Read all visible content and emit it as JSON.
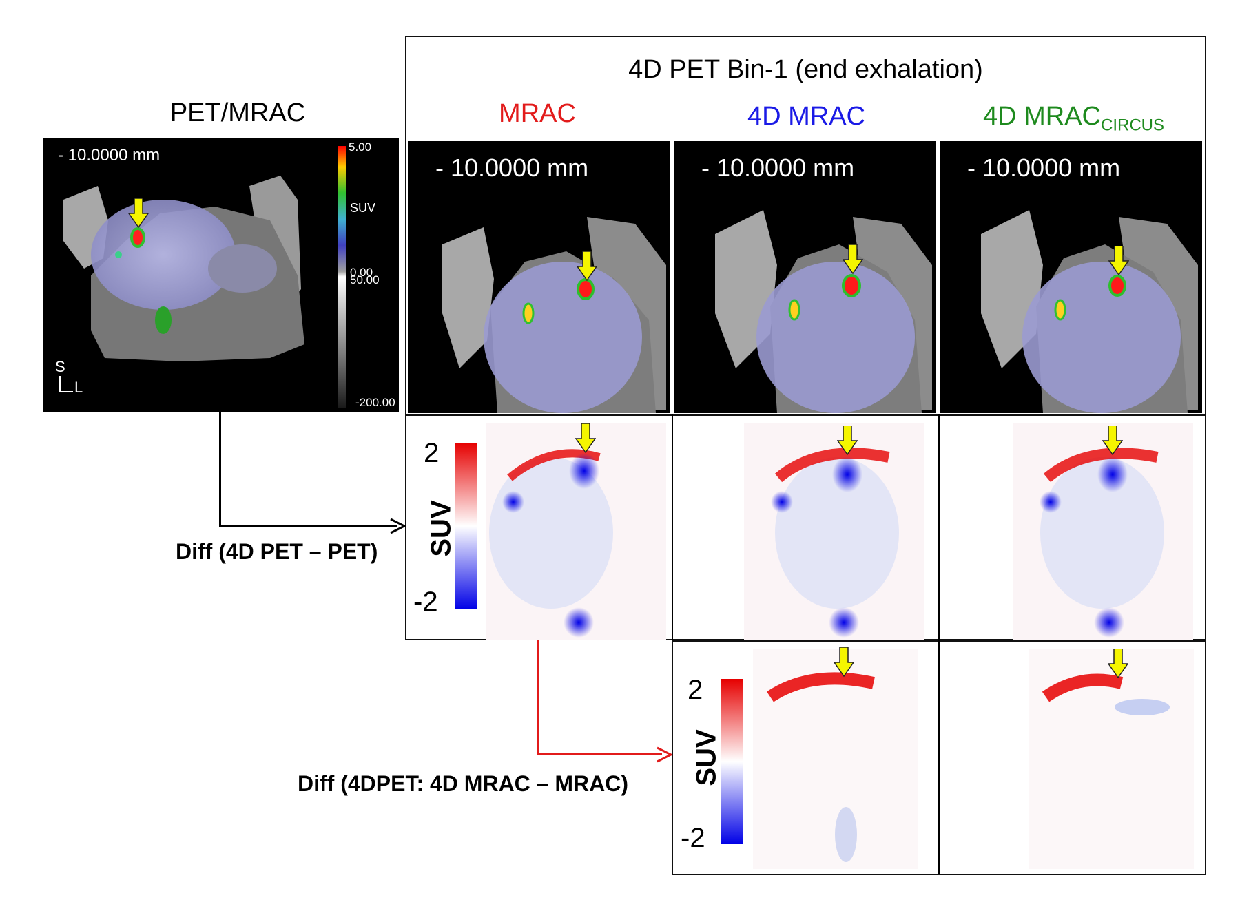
{
  "left_title": "PET/MRAC",
  "group_title": "4D PET Bin-1 (end exhalation)",
  "columns": [
    {
      "label": "MRAC",
      "color": "#e21b1b"
    },
    {
      "label": "4D MRAC",
      "color": "#1a1ae6"
    },
    {
      "label": "4D MRAC",
      "subscript": "CIRCUS",
      "color": "#1e8a1e"
    }
  ],
  "slice_label": "- 10.0000 mm",
  "left_panel": {
    "slice_label": "- 10.0000 mm",
    "colorbar_top": "5.00",
    "colorbar_label": "SUV",
    "colorbar_mid1": "0.00",
    "colorbar_mid2": "50.00",
    "colorbar_bottom": "-200.00",
    "orient_s": "S",
    "orient_l": "L"
  },
  "diff_label_1": "Diff (4D PET – PET)",
  "diff_label_2": "Diff (4DPET: 4D MRAC – MRAC)",
  "diff_colorbar": {
    "top": "2",
    "bottom": "-2",
    "label": "SUV"
  },
  "colors": {
    "arrow": "#f5f500",
    "hot": "#ff0000",
    "cold": "#0000ff"
  }
}
